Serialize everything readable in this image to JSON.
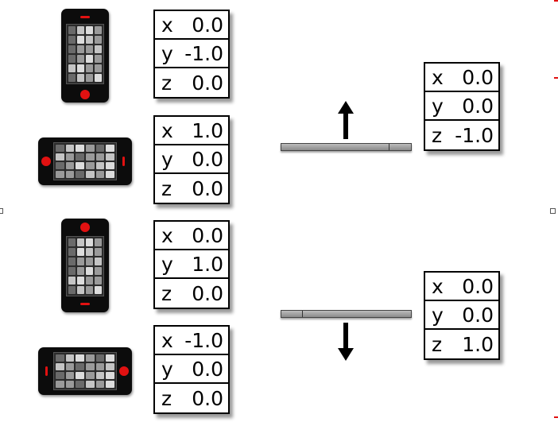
{
  "accent": "#e11111",
  "left_tables": [
    {
      "rows": [
        {
          "axis": "x",
          "value": "0.0"
        },
        {
          "axis": "y",
          "value": "-1.0"
        },
        {
          "axis": "z",
          "value": "0.0"
        }
      ]
    },
    {
      "rows": [
        {
          "axis": "x",
          "value": "1.0"
        },
        {
          "axis": "y",
          "value": "0.0"
        },
        {
          "axis": "z",
          "value": "0.0"
        }
      ]
    },
    {
      "rows": [
        {
          "axis": "x",
          "value": "0.0"
        },
        {
          "axis": "y",
          "value": "1.0"
        },
        {
          "axis": "z",
          "value": "0.0"
        }
      ]
    },
    {
      "rows": [
        {
          "axis": "x",
          "value": "-1.0"
        },
        {
          "axis": "y",
          "value": "0.0"
        },
        {
          "axis": "z",
          "value": "0.0"
        }
      ]
    }
  ],
  "right_tables": [
    {
      "rows": [
        {
          "axis": "x",
          "value": "0.0"
        },
        {
          "axis": "y",
          "value": "0.0"
        },
        {
          "axis": "z",
          "value": "-1.0"
        }
      ]
    },
    {
      "rows": [
        {
          "axis": "x",
          "value": "0.0"
        },
        {
          "axis": "y",
          "value": "0.0"
        },
        {
          "axis": "z",
          "value": "1.0"
        }
      ]
    }
  ],
  "icons": {
    "phone_1": "phone-portrait-icon",
    "phone_2": "phone-landscape-icon",
    "phone_3": "phone-portrait-upside-down-icon",
    "phone_4": "phone-landscape-icon",
    "arrow_up": "arrow-up-icon",
    "arrow_down": "arrow-down-icon"
  }
}
